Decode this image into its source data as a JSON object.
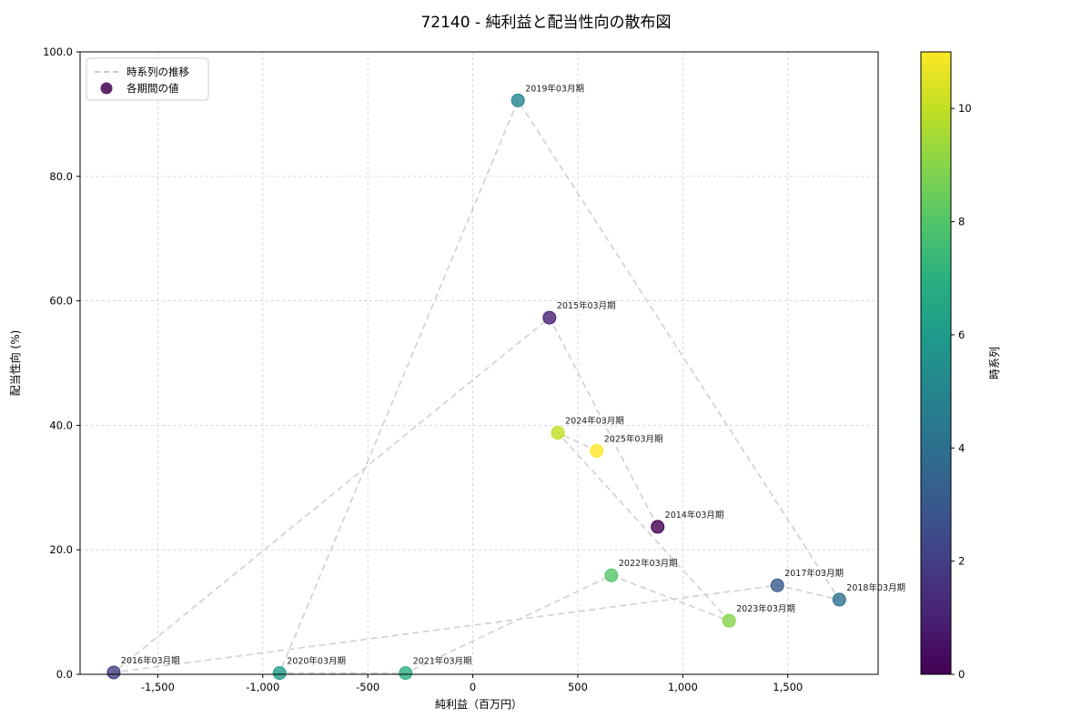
{
  "chart_data": {
    "type": "scatter",
    "title": "72140 - 純利益と配当性向の散布図",
    "xlabel": "純利益（百万円）",
    "ylabel": "配当性向 (%)",
    "xlim": [
      -1870,
      1930
    ],
    "ylim": [
      0,
      100
    ],
    "x_ticks": [
      -1500,
      -1000,
      -500,
      0,
      500,
      1000,
      1500
    ],
    "y_ticks": [
      0,
      20,
      40,
      60,
      80,
      100
    ],
    "grid": true,
    "legend": {
      "position": "upper-left",
      "items": [
        {
          "label": "時系列の推移",
          "type": "dashed-line"
        },
        {
          "label": "各期間の値",
          "type": "point"
        }
      ]
    },
    "colorbar": {
      "label": "時系列",
      "min": 0,
      "max": 11,
      "ticks": [
        0,
        2,
        4,
        6,
        8,
        10
      ],
      "colormap": "viridis"
    },
    "series_line": {
      "style": "dashed",
      "color": "#cdcdcd",
      "order": "chronological"
    },
    "points": [
      {
        "period": "2014年03月期",
        "x": 880,
        "y": 23.7,
        "index": 0,
        "color": "#440154"
      },
      {
        "period": "2015年03月期",
        "x": 365,
        "y": 57.3,
        "index": 1,
        "color": "#482173"
      },
      {
        "period": "2016年03月期",
        "x": -1710,
        "y": 0.3,
        "index": 2,
        "color": "#433e85"
      },
      {
        "period": "2017年03月期",
        "x": 1450,
        "y": 14.3,
        "index": 3,
        "color": "#38598c"
      },
      {
        "period": "2018年03月期",
        "x": 1745,
        "y": 12.0,
        "index": 4,
        "color": "#2d708e"
      },
      {
        "period": "2019年03月期",
        "x": 215,
        "y": 92.2,
        "index": 5,
        "color": "#25858e"
      },
      {
        "period": "2020年03月期",
        "x": -920,
        "y": 0.2,
        "index": 6,
        "color": "#1e9b8a"
      },
      {
        "period": "2021年03月期",
        "x": -320,
        "y": 0.2,
        "index": 7,
        "color": "#2ab07f"
      },
      {
        "period": "2022年03月期",
        "x": 660,
        "y": 15.9,
        "index": 8,
        "color": "#52c569"
      },
      {
        "period": "2023年03月期",
        "x": 1220,
        "y": 8.6,
        "index": 9,
        "color": "#86d549"
      },
      {
        "period": "2024年03月期",
        "x": 405,
        "y": 38.8,
        "index": 10,
        "color": "#c2df23"
      },
      {
        "period": "2025年03月期",
        "x": 590,
        "y": 35.9,
        "index": 11,
        "color": "#fde725"
      }
    ]
  }
}
